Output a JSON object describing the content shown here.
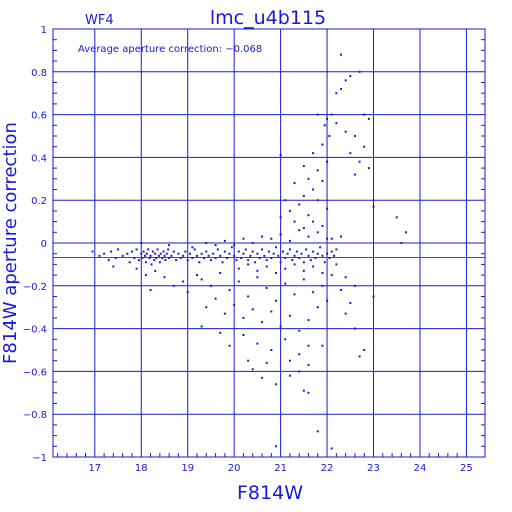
{
  "chart_data": {
    "type": "scatter",
    "panel_label": "WF4",
    "title": "lmc_u4b115",
    "xlabel": "F814W",
    "ylabel": "F814W aperture correction",
    "annotation": "Average aperture correction: −0.068",
    "xlim": [
      16.1,
      25.4
    ],
    "ylim": [
      -1,
      1
    ],
    "x_ticks": [
      "17",
      "18",
      "19",
      "20",
      "21",
      "22",
      "23",
      "24",
      "25"
    ],
    "x_tick_values": [
      17,
      18,
      19,
      20,
      21,
      22,
      23,
      24,
      25
    ],
    "y_ticks": [
      "1",
      "0.8",
      "0.6",
      "0.4",
      "0.2",
      "0",
      "−0.2",
      "−0.4",
      "−0.6",
      "−0.8",
      "−1"
    ],
    "y_tick_values": [
      1,
      0.8,
      0.6,
      0.4,
      0.2,
      0,
      -0.2,
      -0.4,
      -0.6,
      -0.8,
      -1
    ],
    "grid": true,
    "reference_line": {
      "y": -0.068,
      "x_range": [
        16.1,
        25.4
      ],
      "color": "#d21c1c"
    },
    "marker_color": "#1a1ad6",
    "axis_color": "#1a1ad6",
    "points": [
      [
        16.95,
        -0.04
      ],
      [
        17.1,
        -0.06
      ],
      [
        17.2,
        -0.05
      ],
      [
        17.3,
        -0.08
      ],
      [
        17.35,
        -0.04
      ],
      [
        17.45,
        -0.07
      ],
      [
        17.5,
        -0.03
      ],
      [
        17.6,
        -0.06
      ],
      [
        17.7,
        -0.05
      ],
      [
        17.75,
        -0.09
      ],
      [
        17.8,
        -0.04
      ],
      [
        17.85,
        -0.07
      ],
      [
        17.9,
        -0.03
      ],
      [
        17.95,
        -0.08
      ],
      [
        18.0,
        -0.05
      ],
      [
        18.02,
        -0.07
      ],
      [
        18.05,
        -0.04
      ],
      [
        18.08,
        -0.06
      ],
      [
        18.1,
        -0.09
      ],
      [
        18.12,
        -0.05
      ],
      [
        18.15,
        -0.03
      ],
      [
        18.18,
        -0.07
      ],
      [
        18.2,
        -0.06
      ],
      [
        18.22,
        -0.1
      ],
      [
        18.25,
        -0.04
      ],
      [
        18.28,
        -0.08
      ],
      [
        18.3,
        -0.05
      ],
      [
        18.32,
        -0.07
      ],
      [
        18.35,
        -0.03
      ],
      [
        18.38,
        -0.06
      ],
      [
        18.4,
        -0.09
      ],
      [
        18.42,
        -0.05
      ],
      [
        18.45,
        -0.07
      ],
      [
        18.48,
        -0.04
      ],
      [
        18.5,
        -0.06
      ],
      [
        18.52,
        -0.08
      ],
      [
        18.55,
        -0.05
      ],
      [
        18.58,
        -0.03
      ],
      [
        18.6,
        -0.07
      ],
      [
        18.65,
        -0.06
      ],
      [
        18.7,
        -0.04
      ],
      [
        18.75,
        -0.08
      ],
      [
        18.8,
        -0.05
      ],
      [
        18.85,
        -0.07
      ],
      [
        18.9,
        -0.06
      ],
      [
        18.95,
        -0.04
      ],
      [
        19.0,
        -0.08
      ],
      [
        19.05,
        -0.05
      ],
      [
        19.1,
        -0.07
      ],
      [
        19.15,
        -0.03
      ],
      [
        19.2,
        -0.06
      ],
      [
        19.25,
        -0.09
      ],
      [
        19.3,
        -0.05
      ],
      [
        19.35,
        -0.07
      ],
      [
        19.4,
        -0.04
      ],
      [
        19.45,
        -0.06
      ],
      [
        19.5,
        -0.08
      ],
      [
        19.55,
        -0.05
      ],
      [
        19.6,
        -0.07
      ],
      [
        19.65,
        -0.03
      ],
      [
        19.7,
        -0.06
      ],
      [
        19.75,
        -0.09
      ],
      [
        19.8,
        -0.04
      ],
      [
        19.85,
        -0.07
      ],
      [
        19.9,
        -0.05
      ],
      [
        19.95,
        -0.02
      ],
      [
        20.0,
        -0.06
      ],
      [
        20.05,
        -0.08
      ],
      [
        20.1,
        -0.04
      ],
      [
        20.15,
        -0.07
      ],
      [
        20.2,
        -0.05
      ],
      [
        20.25,
        -0.03
      ],
      [
        20.3,
        -0.08
      ],
      [
        20.35,
        -0.06
      ],
      [
        20.4,
        -0.04
      ],
      [
        20.45,
        -0.09
      ],
      [
        20.5,
        -0.05
      ],
      [
        20.55,
        -0.07
      ],
      [
        20.6,
        -0.03
      ],
      [
        20.65,
        -0.06
      ],
      [
        20.7,
        -0.08
      ],
      [
        20.75,
        -0.04
      ],
      [
        20.8,
        -0.07
      ],
      [
        20.85,
        -0.05
      ],
      [
        20.9,
        -0.02
      ],
      [
        20.95,
        -0.06
      ],
      [
        21.0,
        -0.09
      ],
      [
        21.05,
        -0.04
      ],
      [
        21.1,
        -0.07
      ],
      [
        21.15,
        -0.05
      ],
      [
        21.2,
        -0.03
      ],
      [
        21.25,
        -0.08
      ],
      [
        21.3,
        -0.06
      ],
      [
        21.35,
        -0.04
      ],
      [
        21.4,
        -0.07
      ],
      [
        21.45,
        -0.05
      ],
      [
        21.5,
        -0.09
      ],
      [
        21.55,
        -0.03
      ],
      [
        21.6,
        -0.06
      ],
      [
        21.65,
        -0.08
      ],
      [
        21.7,
        -0.04
      ],
      [
        21.75,
        -0.07
      ],
      [
        21.8,
        -0.05
      ],
      [
        21.85,
        -0.02
      ],
      [
        21.9,
        -0.06
      ],
      [
        21.95,
        -0.09
      ],
      [
        22.0,
        -0.05
      ],
      [
        22.05,
        -0.07
      ],
      [
        22.1,
        -0.04
      ],
      [
        22.15,
        -0.06
      ],
      [
        17.4,
        -0.11
      ],
      [
        17.9,
        -0.12
      ],
      [
        18.1,
        -0.15
      ],
      [
        18.3,
        -0.13
      ],
      [
        18.5,
        -0.16
      ],
      [
        18.2,
        -0.22
      ],
      [
        18.7,
        -0.2
      ],
      [
        18.9,
        -0.18
      ],
      [
        19.0,
        -0.23
      ],
      [
        19.2,
        -0.15
      ],
      [
        19.1,
        -0.02
      ],
      [
        18.6,
        -0.01
      ],
      [
        18.0,
        0.0
      ],
      [
        19.4,
        0.0
      ],
      [
        19.6,
        -0.01
      ],
      [
        19.8,
        0.01
      ],
      [
        20.0,
        -0.01
      ],
      [
        20.2,
        0.02
      ],
      [
        20.4,
        0.0
      ],
      [
        20.6,
        0.03
      ],
      [
        20.8,
        0.02
      ],
      [
        21.0,
        0.04
      ],
      [
        21.2,
        0.01
      ],
      [
        21.4,
        0.06
      ],
      [
        21.6,
        0.03
      ],
      [
        21.8,
        0.05
      ],
      [
        22.0,
        0.02
      ],
      [
        21.9,
        0.08
      ],
      [
        21.7,
        0.1
      ],
      [
        21.5,
        0.07
      ],
      [
        19.3,
        -0.17
      ],
      [
        19.5,
        -0.2
      ],
      [
        19.7,
        -0.14
      ],
      [
        19.9,
        -0.22
      ],
      [
        20.1,
        -0.18
      ],
      [
        20.3,
        -0.25
      ],
      [
        20.5,
        -0.16
      ],
      [
        20.7,
        -0.21
      ],
      [
        20.9,
        -0.27
      ],
      [
        21.1,
        -0.19
      ],
      [
        21.3,
        -0.24
      ],
      [
        21.5,
        -0.17
      ],
      [
        21.7,
        -0.23
      ],
      [
        21.9,
        -0.2
      ],
      [
        22.1,
        -0.15
      ],
      [
        19.4,
        -0.3
      ],
      [
        19.6,
        -0.26
      ],
      [
        19.8,
        -0.33
      ],
      [
        20.0,
        -0.29
      ],
      [
        20.2,
        -0.35
      ],
      [
        20.4,
        -0.31
      ],
      [
        20.6,
        -0.37
      ],
      [
        20.8,
        -0.32
      ],
      [
        21.0,
        -0.39
      ],
      [
        21.2,
        -0.34
      ],
      [
        21.4,
        -0.41
      ],
      [
        21.6,
        -0.36
      ],
      [
        21.8,
        -0.3
      ],
      [
        22.0,
        -0.27
      ],
      [
        20.1,
        -0.12
      ],
      [
        20.3,
        -0.1
      ],
      [
        20.5,
        -0.13
      ],
      [
        20.7,
        -0.11
      ],
      [
        20.9,
        -0.14
      ],
      [
        21.1,
        -0.12
      ],
      [
        21.3,
        -0.1
      ],
      [
        21.5,
        -0.13
      ],
      [
        21.7,
        -0.11
      ],
      [
        21.9,
        -0.14
      ],
      [
        20.2,
        -0.43
      ],
      [
        20.5,
        -0.47
      ],
      [
        20.8,
        -0.5
      ],
      [
        21.1,
        -0.45
      ],
      [
        21.4,
        -0.52
      ],
      [
        21.6,
        -0.57
      ],
      [
        21.9,
        -0.48
      ],
      [
        19.3,
        -0.39
      ],
      [
        19.7,
        -0.42
      ],
      [
        19.9,
        -0.48
      ],
      [
        20.4,
        -0.59
      ],
      [
        20.6,
        -0.63
      ],
      [
        20.9,
        -0.66
      ],
      [
        21.2,
        -0.62
      ],
      [
        21.5,
        -0.69
      ],
      [
        21.6,
        -0.7
      ],
      [
        20.7,
        -0.56
      ],
      [
        20.3,
        -0.55
      ],
      [
        21.8,
        -0.88
      ],
      [
        20.9,
        -0.95
      ],
      [
        22.1,
        -0.96
      ],
      [
        21.0,
        0.12
      ],
      [
        21.2,
        0.15
      ],
      [
        21.4,
        0.18
      ],
      [
        21.6,
        0.13
      ],
      [
        21.8,
        0.2
      ],
      [
        22.0,
        0.16
      ],
      [
        21.5,
        0.22
      ],
      [
        21.7,
        0.25
      ],
      [
        21.9,
        0.29
      ],
      [
        21.3,
        0.1
      ],
      [
        21.1,
        0.2
      ],
      [
        21.6,
        0.3
      ],
      [
        21.8,
        0.34
      ],
      [
        22.0,
        0.38
      ],
      [
        21.7,
        0.42
      ],
      [
        21.9,
        0.46
      ],
      [
        21.5,
        0.36
      ],
      [
        21.3,
        0.28
      ],
      [
        21.0,
        0.41
      ],
      [
        22.05,
        0.5
      ],
      [
        21.95,
        0.55
      ],
      [
        22.1,
        0.6
      ],
      [
        22.0,
        0.58
      ],
      [
        22.2,
        0.7
      ],
      [
        22.3,
        0.72
      ],
      [
        22.4,
        0.76
      ],
      [
        22.5,
        0.78
      ],
      [
        22.3,
        0.88
      ],
      [
        22.7,
        0.8
      ],
      [
        21.8,
        0.6
      ],
      [
        22.2,
        0.56
      ],
      [
        22.4,
        0.52
      ],
      [
        22.6,
        0.5
      ],
      [
        22.5,
        0.42
      ],
      [
        22.7,
        0.38
      ],
      [
        22.6,
        0.32
      ],
      [
        22.8,
        0.6
      ],
      [
        22.9,
        0.58
      ],
      [
        22.8,
        0.45
      ],
      [
        22.9,
        0.35
      ],
      [
        23.0,
        0.17
      ],
      [
        23.5,
        0.12
      ],
      [
        23.7,
        0.05
      ],
      [
        23.6,
        0.0
      ],
      [
        22.3,
        -0.22
      ],
      [
        22.5,
        -0.28
      ],
      [
        22.4,
        -0.33
      ],
      [
        22.6,
        -0.4
      ],
      [
        22.8,
        -0.5
      ],
      [
        22.7,
        -0.53
      ],
      [
        23.0,
        -0.25
      ],
      [
        22.2,
        -0.1
      ],
      [
        22.4,
        -0.16
      ],
      [
        22.6,
        -0.2
      ],
      [
        22.1,
        0.02
      ],
      [
        22.2,
        -0.03
      ],
      [
        22.3,
        0.03
      ],
      [
        21.2,
        -0.55
      ],
      [
        21.4,
        -0.6
      ],
      [
        21.6,
        -0.48
      ]
    ]
  }
}
